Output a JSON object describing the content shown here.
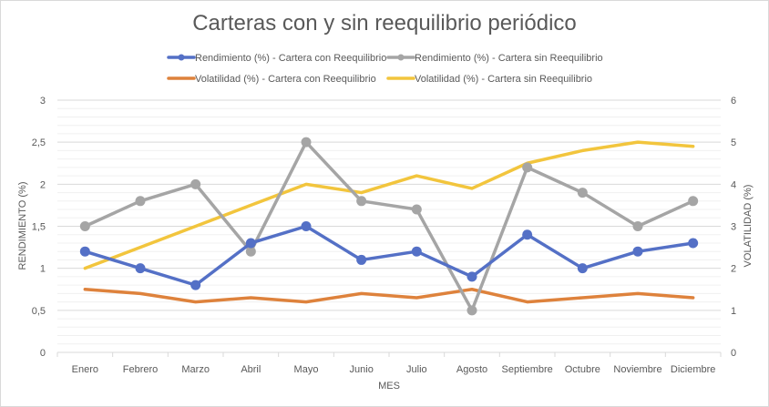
{
  "chart_data": {
    "type": "line",
    "title": "Carteras con y sin reequilibrio periódico",
    "xlabel": "MES",
    "ylabel": "RENDIMIENTO (%)",
    "y2label": "VOLATILIDAD (%)",
    "categories": [
      "Enero",
      "Febrero",
      "Marzo",
      "Abril",
      "Mayo",
      "Junio",
      "Julio",
      "Agosto",
      "Septiembre",
      "Octubre",
      "Noviembre",
      "Diciembre"
    ],
    "ylim": [
      0,
      3
    ],
    "y_ticks": [
      "0",
      "0,5",
      "1",
      "1,5",
      "2",
      "2,5",
      "3"
    ],
    "y2lim": [
      0,
      6
    ],
    "y2_ticks": [
      "0",
      "1",
      "2",
      "3",
      "4",
      "5",
      "6"
    ],
    "grid": true,
    "legend_position": "top",
    "series": [
      {
        "name": "Rendimiento (%) - Cartera con Reequilibrio",
        "axis": "left",
        "markers": true,
        "color": "#5470C6",
        "values": [
          1.2,
          1.0,
          0.8,
          1.3,
          1.5,
          1.1,
          1.2,
          0.9,
          1.4,
          1.0,
          1.2,
          1.3
        ]
      },
      {
        "name": "Rendimiento (%) - Cartera sin Reequilibrio",
        "axis": "left",
        "markers": true,
        "color": "#A5A5A5",
        "values": [
          1.5,
          1.8,
          2.0,
          1.2,
          2.5,
          1.8,
          1.7,
          0.5,
          2.2,
          1.9,
          1.5,
          1.8
        ]
      },
      {
        "name": "Volatilidad (%) - Cartera con Reequilibrio",
        "axis": "right",
        "markers": false,
        "color": "#DE823C",
        "values": [
          1.5,
          1.4,
          1.2,
          1.3,
          1.2,
          1.4,
          1.3,
          1.5,
          1.2,
          1.3,
          1.4,
          1.3
        ]
      },
      {
        "name": "Volatilidad (%) - Cartera sin Reequilibrio",
        "axis": "right",
        "markers": false,
        "color": "#F2C53D",
        "values": [
          2.0,
          2.5,
          3.0,
          3.5,
          4.0,
          3.8,
          4.2,
          3.9,
          4.5,
          4.8,
          5.0,
          4.9
        ]
      }
    ]
  }
}
